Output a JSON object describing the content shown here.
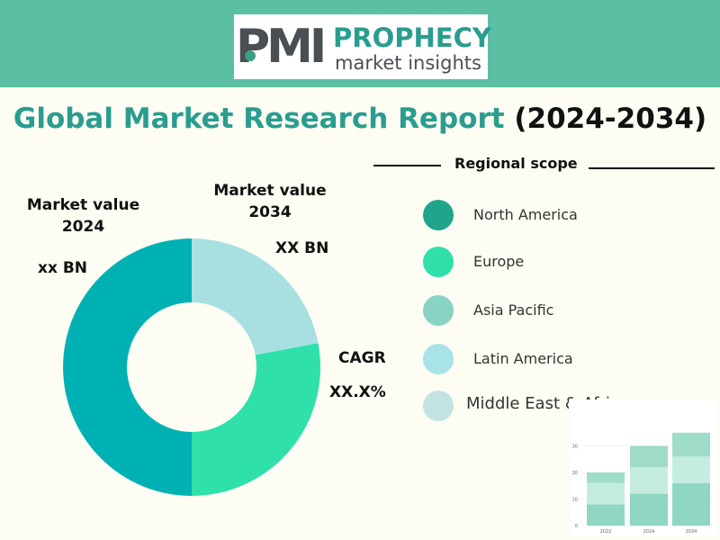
{
  "logo": {
    "mark": "PMI",
    "name": "PROPHECY",
    "tagline": "market insights"
  },
  "title": {
    "main": "Global Market Research Report",
    "years": "(2024-2034)"
  },
  "labels": {
    "market_value_2024_line1": "Market value",
    "market_value_2024_line2": "2024",
    "market_value_2034_line1": "Market value",
    "market_value_2034_line2": "2034",
    "value_2024": "xx BN",
    "value_2034": "XX BN",
    "cagr": "CAGR",
    "cagr_value": "XX.X%"
  },
  "legend": {
    "heading": "Regional scope",
    "items": [
      {
        "label": "North America",
        "color": "#1fa58c"
      },
      {
        "label": "Europe",
        "color": "#2fe0aa"
      },
      {
        "label": "Asia Pacific",
        "color": "#88d3c3"
      },
      {
        "label": "Latin America",
        "color": "#a8e3e8"
      },
      {
        "label": "Middle East & Africa",
        "color": "#c3e3e2"
      }
    ]
  },
  "chart_data": [
    {
      "type": "pie",
      "variant": "donut",
      "slices": [
        {
          "value": 22,
          "color": "#a8e0e2"
        },
        {
          "value": 28,
          "color": "#2fe0aa"
        },
        {
          "value": 50,
          "color": "#00b1b3"
        }
      ]
    },
    {
      "type": "bar",
      "stacked": true,
      "categories": [
        "2022",
        "2024",
        "2034"
      ],
      "series": [
        {
          "values": [
            8,
            12,
            16
          ],
          "color": "#8fd6c3"
        },
        {
          "values": [
            8,
            10,
            10
          ],
          "color": "#c5ece0"
        },
        {
          "values": [
            4,
            8,
            9
          ],
          "color": "#9fdcc9"
        }
      ],
      "yticks": [
        "0",
        "10",
        "20",
        "30"
      ],
      "ylim": [
        0,
        40
      ]
    }
  ]
}
